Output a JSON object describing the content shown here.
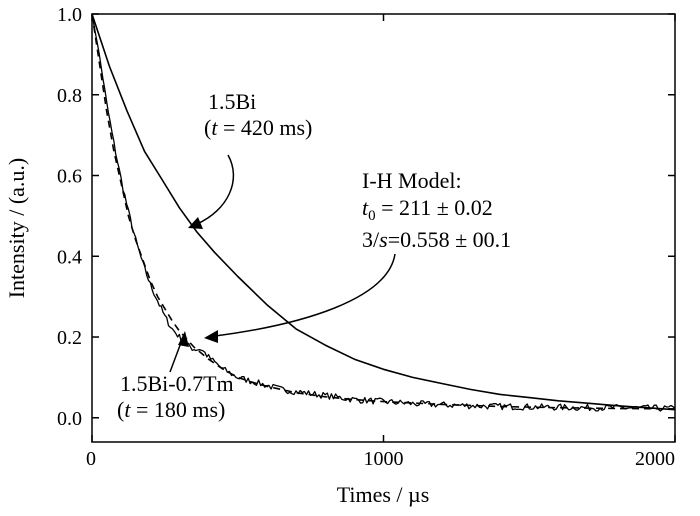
{
  "chart_data": {
    "type": "line",
    "title": "",
    "xlabel": "Times / µs",
    "ylabel": "Intensity / (a.u.)",
    "xlim": [
      0,
      2000
    ],
    "ylim": [
      -0.06,
      1.0
    ],
    "xticks": [
      0,
      1000,
      2000
    ],
    "xtick_labels": [
      "0",
      "1000",
      "2000"
    ],
    "yticks": [
      0.0,
      0.2,
      0.4,
      0.6,
      0.8,
      1.0
    ],
    "ytick_labels": [
      "0.0",
      "0.2",
      "0.4",
      "0.6",
      "0.8",
      "1.0"
    ],
    "grid": false,
    "legend": "none",
    "series": [
      {
        "style": "solid",
        "x": [
          0,
          60,
          120,
          180,
          240,
          300,
          360,
          420,
          500,
          600,
          700,
          800,
          900,
          1000,
          1100,
          1200,
          1300,
          1400,
          1500,
          1600,
          1700,
          1800,
          1900,
          2000
        ],
        "y": [
          1.0,
          0.87,
          0.76,
          0.66,
          0.59,
          0.52,
          0.46,
          0.41,
          0.35,
          0.28,
          0.22,
          0.18,
          0.145,
          0.12,
          0.1,
          0.085,
          0.07,
          0.058,
          0.05,
          0.042,
          0.036,
          0.03,
          0.025,
          0.02
        ]
      },
      {
        "style": "noisy",
        "x": [
          0,
          25,
          50,
          75,
          100,
          125,
          150,
          175,
          200,
          225,
          250,
          275,
          300,
          325,
          350,
          375,
          400,
          450,
          500,
          550,
          600,
          650,
          700,
          800,
          900,
          1000,
          1100,
          1200,
          1300,
          1400,
          1500,
          1600,
          1700,
          1800,
          1900,
          2000
        ],
        "y": [
          1.0,
          0.9,
          0.78,
          0.68,
          0.59,
          0.51,
          0.44,
          0.38,
          0.33,
          0.29,
          0.25,
          0.22,
          0.2,
          0.18,
          0.17,
          0.17,
          0.15,
          0.12,
          0.1,
          0.09,
          0.08,
          0.07,
          0.065,
          0.055,
          0.045,
          0.04,
          0.035,
          0.032,
          0.03,
          0.028,
          0.027,
          0.026,
          0.025,
          0.025,
          0.024,
          0.023
        ]
      },
      {
        "style": "dashed",
        "x": [
          0,
          25,
          50,
          75,
          100,
          125,
          150,
          175,
          200,
          225,
          250,
          275,
          300,
          325,
          350,
          400,
          450,
          500,
          550,
          600,
          700,
          800,
          900,
          1000,
          1200,
          1400,
          1600,
          1800,
          2000
        ],
        "y": [
          1.0,
          0.88,
          0.76,
          0.66,
          0.58,
          0.5,
          0.44,
          0.39,
          0.34,
          0.3,
          0.27,
          0.24,
          0.215,
          0.195,
          0.175,
          0.145,
          0.12,
          0.1,
          0.088,
          0.078,
          0.062,
          0.052,
          0.045,
          0.04,
          0.033,
          0.028,
          0.025,
          0.023,
          0.022
        ]
      }
    ],
    "annotations": [
      {
        "id": "bi",
        "line1": "1.5Bi",
        "line2_open": "(",
        "line2_var": "t",
        "line2_rest": " = 420 ms)"
      },
      {
        "id": "tm",
        "line1": "1.5Bi-0.7Tm",
        "line2_open": "(",
        "line2_var": "t",
        "line2_rest": " = 180 ms)"
      },
      {
        "id": "model",
        "line1": "I-H Model:",
        "line2_var": "t",
        "line2_sub": "0",
        "line2_rest": " = 211 ± 0.02",
        "line3_pre": "3/",
        "line3_var": "s",
        "line3_rest": "=0.558 ± 00.1"
      }
    ]
  }
}
